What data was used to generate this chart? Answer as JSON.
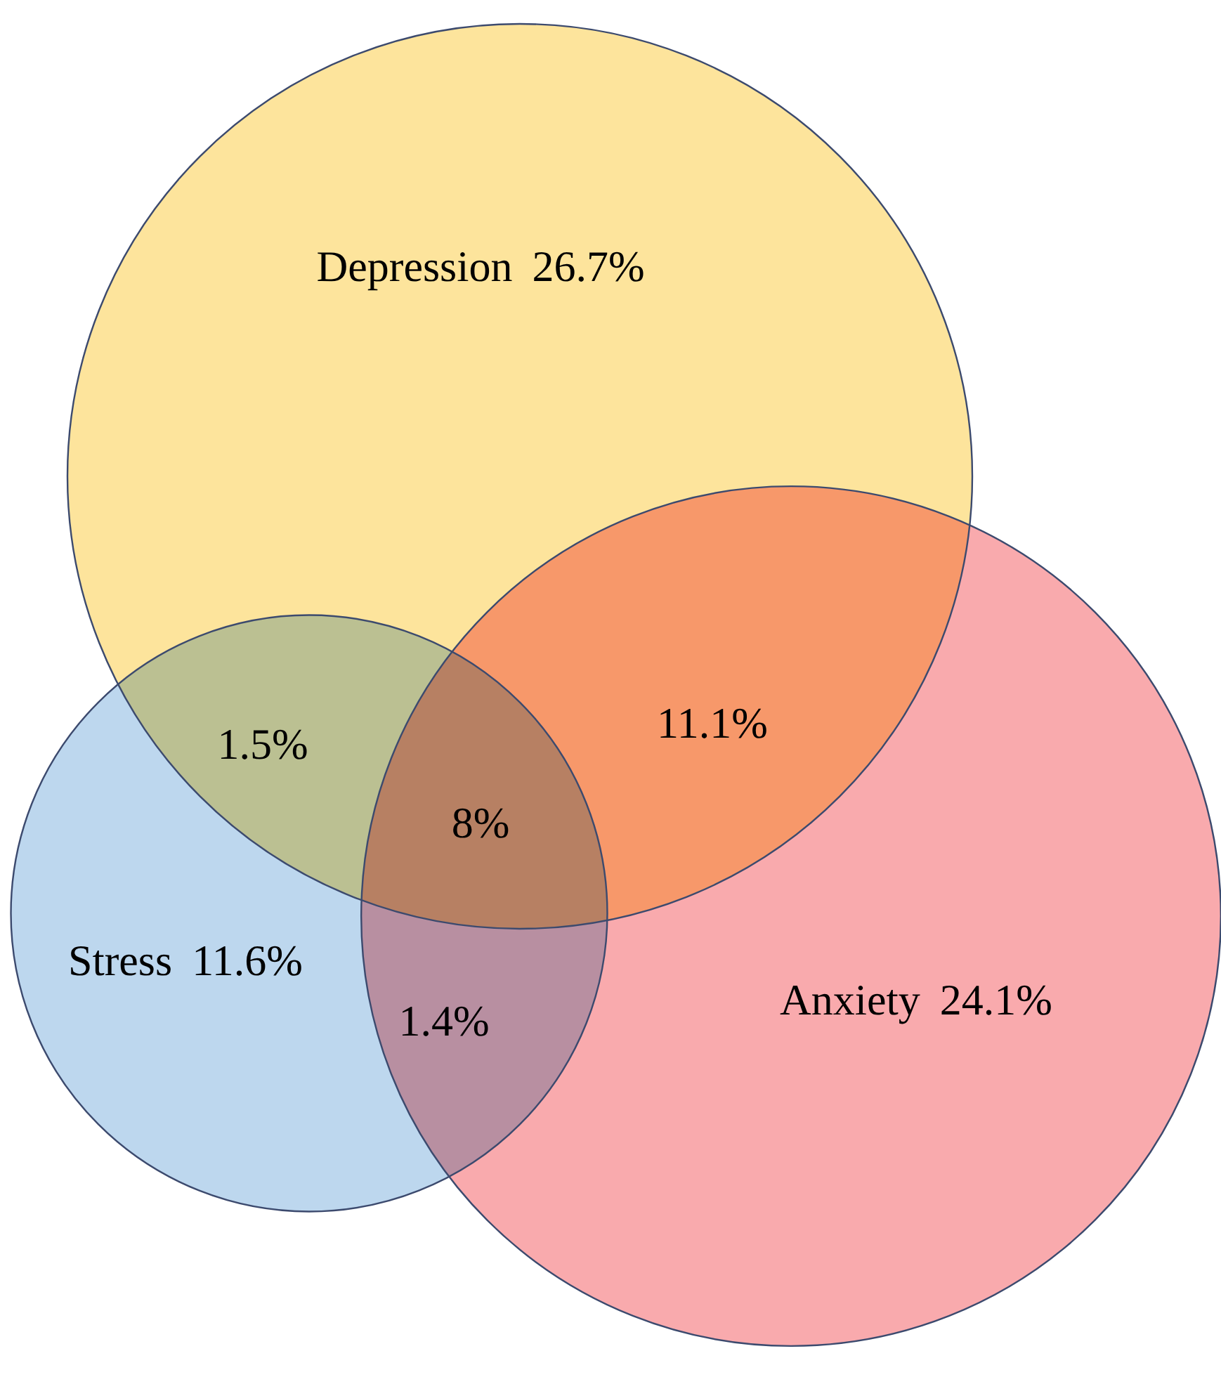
{
  "chart_data": {
    "type": "other",
    "categories": [
      "Depression",
      "Anxiety",
      "Stress"
    ],
    "values": [
      26.7,
      24.1,
      11.6
    ],
    "value_labels": [
      "26.7%",
      "24.1%",
      "11.6%"
    ],
    "colors": [
      "#fde49c",
      "#f9aaad",
      "#bdd7ee"
    ],
    "annotations": [
      "1.5%",
      "11.1%",
      "8%",
      "1.4%"
    ]
  }
}
